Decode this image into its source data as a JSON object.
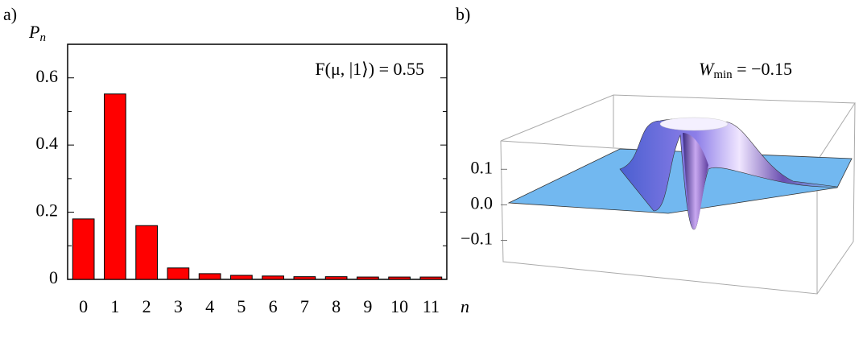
{
  "chart_data": [
    {
      "type": "bar",
      "panel": "a)",
      "ylabel": {
        "text": "P",
        "sub": "n"
      },
      "xlabel": "n",
      "annotation": "F(μ, |1⟩) = 0.55",
      "categories": [
        "0",
        "1",
        "2",
        "3",
        "4",
        "5",
        "6",
        "7",
        "8",
        "9",
        "10",
        "11"
      ],
      "values": [
        0.18,
        0.552,
        0.16,
        0.034,
        0.017,
        0.012,
        0.01,
        0.008,
        0.008,
        0.007,
        0.007,
        0.007
      ],
      "color": "#ff0000",
      "ylim": [
        0,
        0.7
      ],
      "yticks": [
        0,
        0.2,
        0.4,
        0.6
      ],
      "minor_yticks": [
        0.1,
        0.3,
        0.5
      ]
    },
    {
      "type": "surface",
      "panel": "b)",
      "title": {
        "text": "W",
        "sub": "min",
        "rest": " = −0.15"
      },
      "zlim": [
        -0.16,
        0.18
      ],
      "zticks": [
        {
          "value": -0.1,
          "label": "−0.1"
        },
        {
          "value": 0,
          "label": "0.0"
        },
        0.1
      ]
    }
  ]
}
